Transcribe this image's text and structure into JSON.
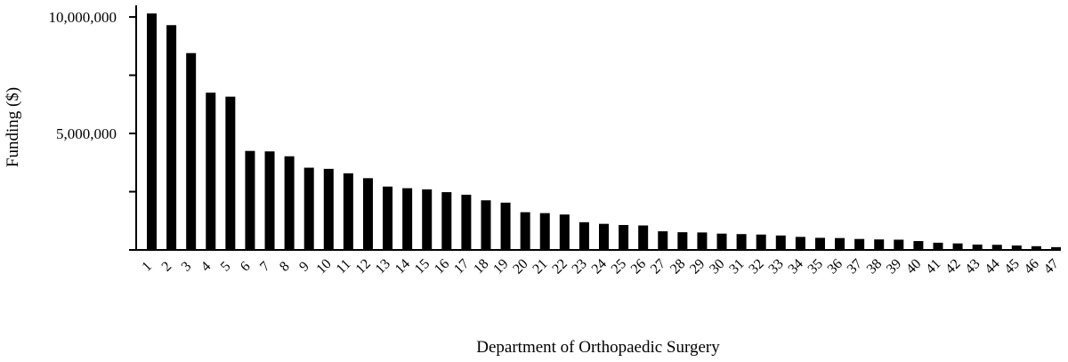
{
  "chart_data": {
    "type": "bar",
    "xlabel": "Department of Orthopaedic Surgery",
    "ylabel": "Funding ($)",
    "ylim": [
      0,
      10500000
    ],
    "yticks": [
      0,
      2500000,
      5000000,
      7500000,
      10000000
    ],
    "ytick_labels": [
      {
        "value": 5000000,
        "label": "5,000,000"
      },
      {
        "value": 10000000,
        "label": "10,000,000"
      }
    ],
    "categories": [
      "1",
      "2",
      "3",
      "4",
      "5",
      "6",
      "7",
      "8",
      "9",
      "10",
      "11",
      "12",
      "13",
      "14",
      "15",
      "16",
      "17",
      "18",
      "19",
      "20",
      "21",
      "22",
      "23",
      "24",
      "25",
      "26",
      "27",
      "28",
      "29",
      "30",
      "31",
      "32",
      "33",
      "34",
      "35",
      "36",
      "37",
      "38",
      "39",
      "40",
      "41",
      "42",
      "43",
      "44",
      "45",
      "46",
      "47"
    ],
    "values": [
      10150000,
      9650000,
      8450000,
      6750000,
      6580000,
      4250000,
      4230000,
      4020000,
      3530000,
      3480000,
      3290000,
      3080000,
      2720000,
      2650000,
      2600000,
      2480000,
      2370000,
      2130000,
      2030000,
      1620000,
      1580000,
      1520000,
      1190000,
      1120000,
      1070000,
      1050000,
      800000,
      760000,
      750000,
      700000,
      680000,
      660000,
      620000,
      560000,
      520000,
      510000,
      470000,
      450000,
      440000,
      380000,
      310000,
      280000,
      230000,
      220000,
      190000,
      160000,
      120000
    ],
    "grid": false
  }
}
